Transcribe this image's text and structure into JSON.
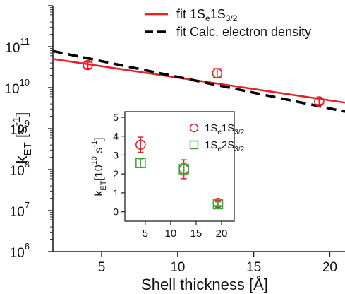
{
  "chart_data": [
    {
      "type": "scatter",
      "xlabel": "Shell thickness [Å]",
      "ylabel": {
        "base": "k",
        "sub": "ET",
        "unit": " [s",
        "sup": "-1",
        "close": "]"
      },
      "xlim": [
        1.8,
        21
      ],
      "ylim": [
        1000000,
        1000000000000
      ],
      "yscale": "log",
      "xticks": [
        5,
        10,
        15,
        20
      ],
      "xtick_labels": [
        "5",
        "10",
        "15",
        "20"
      ],
      "yticks": [
        1000000,
        10000000,
        100000000,
        1000000000,
        10000000000,
        100000000000
      ],
      "ytick_labels": [
        {
          "base": "10",
          "exp": "6"
        },
        {
          "base": "10",
          "exp": "7"
        },
        {
          "base": "10",
          "exp": "8"
        },
        {
          "base": "10",
          "exp": "9"
        },
        {
          "base": "10",
          "exp": "10"
        },
        {
          "base": "10",
          "exp": "11"
        }
      ],
      "grid": false,
      "legend": {
        "placement": "top-right",
        "entries": [
          {
            "label_parts": [
              {
                "t": "fit 1S",
                "s": ""
              },
              {
                "t": "e",
                "s": "sub"
              },
              {
                "t": "1S",
                "s": ""
              },
              {
                "t": "3/2",
                "s": "sub"
              }
            ],
            "color": "#e8202a",
            "style": "solid"
          },
          {
            "label_parts": [
              {
                "t": "fit Calc. electron density",
                "s": ""
              }
            ],
            "color": "#000000",
            "style": "dashed"
          }
        ]
      },
      "series": [
        {
          "kind": "points",
          "marker": "circle",
          "color": "#e8202a",
          "x": [
            4.1,
            12.6,
            19.3
          ],
          "y": [
            35500000000,
            22500000000,
            4600000000
          ],
          "yerr_low": [
            29500000000,
            17500000000,
            3900000000
          ],
          "yerr_high": [
            42000000000,
            29000000000,
            5400000000
          ]
        },
        {
          "kind": "line",
          "style": "solid",
          "color": "#e8202a",
          "x": [
            1.8,
            21
          ],
          "y": [
            50000000000,
            4300000000
          ]
        },
        {
          "kind": "line",
          "style": "dashed",
          "color": "#000000",
          "x": [
            1.8,
            21
          ],
          "y": [
            78000000000,
            2600000000
          ]
        }
      ]
    },
    {
      "type": "scatter",
      "xlabel": "",
      "ylabel": {
        "base": "k",
        "sub": "ET",
        "unit": "[10",
        "sup": "10",
        "tail": " s",
        "sup2": "-1",
        "close": "]"
      },
      "xlim": [
        1,
        22.5
      ],
      "ylim": [
        -0.5,
        5.3
      ],
      "xticks": [
        5,
        10,
        15,
        20
      ],
      "xtick_labels": [
        "5",
        "10",
        "15",
        "20"
      ],
      "yticks": [
        0,
        1,
        2,
        3,
        4,
        5
      ],
      "ytick_labels": [
        "0",
        "1",
        "2",
        "3",
        "4",
        "5"
      ],
      "grid": false,
      "legend": {
        "placement": "top-right",
        "entries": [
          {
            "label_parts": [
              {
                "t": "1S",
                "s": ""
              },
              {
                "t": "e",
                "s": "sub"
              },
              {
                "t": "1S",
                "s": ""
              },
              {
                "t": "3/2",
                "s": "sub"
              }
            ],
            "color": "#e8202a",
            "marker": "circle"
          },
          {
            "label_parts": [
              {
                "t": "1S",
                "s": ""
              },
              {
                "t": "e",
                "s": "sub"
              },
              {
                "t": "2S",
                "s": ""
              },
              {
                "t": "3/2",
                "s": "sub"
              }
            ],
            "color": "#3aa935",
            "marker": "square"
          }
        ]
      },
      "series": [
        {
          "kind": "points",
          "marker": "circle",
          "color": "#e8202a",
          "x": [
            4.1,
            12.6,
            19.3
          ],
          "y": [
            3.55,
            2.25,
            0.46
          ],
          "yerr_low": [
            3.15,
            1.75,
            0.32
          ],
          "yerr_high": [
            3.95,
            2.75,
            0.6
          ]
        },
        {
          "kind": "points",
          "marker": "square",
          "color": "#3aa935",
          "x": [
            4.1,
            12.6,
            19.3
          ],
          "y": [
            2.58,
            2.25,
            0.4
          ],
          "yerr_low": [
            2.35,
            1.95,
            0.28
          ],
          "yerr_high": [
            2.8,
            2.55,
            0.52
          ]
        }
      ]
    }
  ]
}
